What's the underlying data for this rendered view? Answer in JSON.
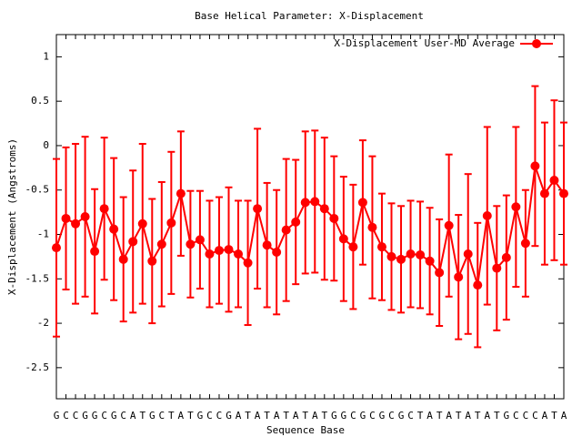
{
  "chart_data": {
    "type": "errorbar-line",
    "title": "Base  Helical Parameter: X-Displacement",
    "x_label": "Sequence Base",
    "y_label": "X-Displacement (Angstroms)",
    "categories": [
      "G",
      "C",
      "C",
      "G",
      "G",
      "C",
      "G",
      "C",
      "A",
      "T",
      "G",
      "C",
      "T",
      "A",
      "T",
      "G",
      "C",
      "C",
      "G",
      "A",
      "T",
      "A",
      "T",
      "A",
      "T",
      "A",
      "T",
      "A",
      "T",
      "G",
      "G",
      "C",
      "G",
      "C",
      "G",
      "C",
      "G",
      "C",
      "T",
      "A",
      "T",
      "A",
      "T",
      "A",
      "T",
      "A",
      "T",
      "G",
      "C",
      "C",
      "C",
      "A",
      "T",
      "A"
    ],
    "series": [
      {
        "name": "X-Displacement User-MD Average",
        "color": "#ff0000",
        "values": [
          -1.15,
          -0.82,
          -0.88,
          -0.8,
          -1.19,
          -0.71,
          -0.94,
          -1.28,
          -1.08,
          -0.88,
          -1.3,
          -1.11,
          -0.87,
          -0.54,
          -1.11,
          -1.06,
          -1.22,
          -1.18,
          -1.17,
          -1.22,
          -1.32,
          -0.71,
          -1.12,
          -1.2,
          -0.95,
          -0.86,
          -0.64,
          -0.63,
          -0.71,
          -0.82,
          -1.05,
          -1.14,
          -0.64,
          -0.92,
          -1.14,
          -1.25,
          -1.28,
          -1.22,
          -1.23,
          -1.3,
          -1.43,
          -0.9,
          -1.48,
          -1.22,
          -1.57,
          -0.79,
          -1.38,
          -1.26,
          -0.69,
          -1.1,
          -0.23,
          -0.54,
          -0.39,
          -0.54
        ],
        "errors": [
          1.0,
          0.8,
          0.9,
          0.9,
          0.7,
          0.8,
          0.8,
          0.7,
          0.8,
          0.9,
          0.7,
          0.7,
          0.8,
          0.7,
          0.6,
          0.55,
          0.6,
          0.6,
          0.7,
          0.6,
          0.7,
          0.9,
          0.7,
          0.7,
          0.8,
          0.7,
          0.8,
          0.8,
          0.8,
          0.7,
          0.7,
          0.7,
          0.7,
          0.8,
          0.6,
          0.6,
          0.6,
          0.6,
          0.6,
          0.6,
          0.6,
          0.8,
          0.7,
          0.9,
          0.7,
          1.0,
          0.7,
          0.7,
          0.9,
          0.6,
          0.9,
          0.8,
          0.9,
          0.8
        ]
      }
    ],
    "ylim": [
      -2.85,
      1.25
    ],
    "yticks": [
      -2.5,
      -2,
      -1.5,
      -1,
      -0.5,
      0,
      0.5,
      1
    ],
    "legend": "upper right"
  }
}
